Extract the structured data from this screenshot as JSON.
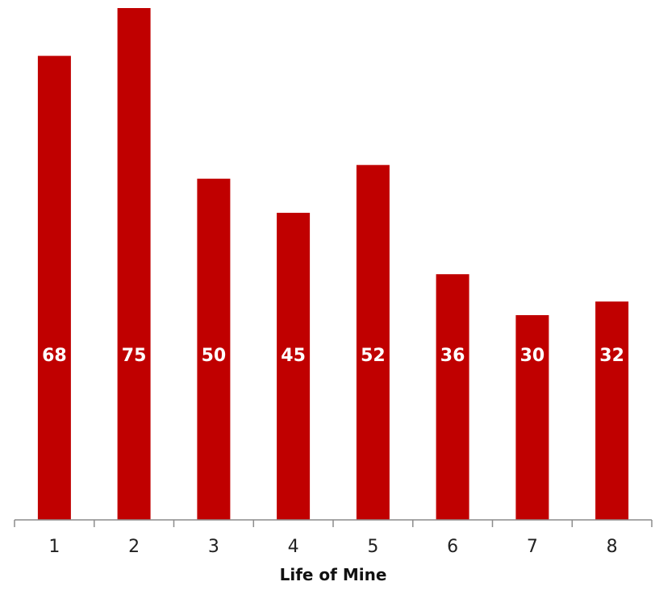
{
  "chart_data": {
    "type": "bar",
    "categories": [
      "1",
      "2",
      "3",
      "4",
      "5",
      "6",
      "7",
      "8"
    ],
    "values": [
      68,
      75,
      50,
      45,
      52,
      36,
      30,
      32
    ],
    "title": "",
    "xlabel": "Life of Mine",
    "ylabel": "",
    "ylim": [
      0,
      75
    ],
    "grid": false,
    "legend": "none",
    "bar_color": "#c00000",
    "data_label_color": "#ffffff",
    "data_labels": "inside-bar"
  }
}
